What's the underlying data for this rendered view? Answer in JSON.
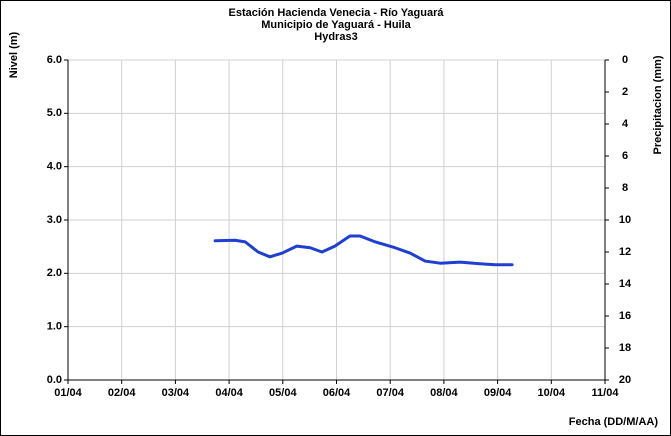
{
  "chart_data": {
    "type": "line",
    "title": [
      "Estación Hacienda  Venecia - Río  Yaguará",
      "Municipio de Yaguará - Huila",
      "Hydras3"
    ],
    "ylabel": "Nivel (m)",
    "y2label": "Precipitacion (mm)",
    "xlabel": "Fecha (DD/M/AA)",
    "xlim": [
      1,
      11
    ],
    "xticks": [
      {
        "value": 1,
        "label": "01/04"
      },
      {
        "value": 2,
        "label": "02/04"
      },
      {
        "value": 3,
        "label": "03/04"
      },
      {
        "value": 4,
        "label": "04/04"
      },
      {
        "value": 5,
        "label": "05/04"
      },
      {
        "value": 6,
        "label": "06/04"
      },
      {
        "value": 7,
        "label": "07/04"
      },
      {
        "value": 8,
        "label": "08/04"
      },
      {
        "value": 9,
        "label": "09/04"
      },
      {
        "value": 10,
        "label": "10/04"
      },
      {
        "value": 11,
        "label": "11/04"
      }
    ],
    "ylim": [
      0,
      6
    ],
    "yticks": [
      {
        "value": 0,
        "label": "0.0"
      },
      {
        "value": 1,
        "label": "1.0"
      },
      {
        "value": 2,
        "label": "2.0"
      },
      {
        "value": 3,
        "label": "3.0"
      },
      {
        "value": 4,
        "label": "4.0"
      },
      {
        "value": 5,
        "label": "5.0"
      },
      {
        "value": 6,
        "label": "6.0"
      }
    ],
    "y2lim": [
      20,
      0
    ],
    "y2_inverted": true,
    "y2ticks": [
      0,
      2,
      4,
      6,
      8,
      10,
      12,
      14,
      16,
      18,
      20
    ],
    "grid": true,
    "series": [
      {
        "color": "#1f3fd0",
        "x": [
          3.74,
          4.11,
          4.3,
          4.54,
          4.76,
          4.99,
          5.26,
          5.51,
          5.73,
          5.97,
          6.25,
          6.44,
          6.72,
          7.09,
          7.37,
          7.65,
          7.93,
          8.3,
          8.67,
          8.95,
          9.27
        ],
        "values": [
          2.61,
          2.62,
          2.59,
          2.4,
          2.31,
          2.38,
          2.51,
          2.48,
          2.4,
          2.51,
          2.7,
          2.7,
          2.59,
          2.48,
          2.38,
          2.23,
          2.19,
          2.21,
          2.18,
          2.16,
          2.16
        ]
      }
    ]
  }
}
